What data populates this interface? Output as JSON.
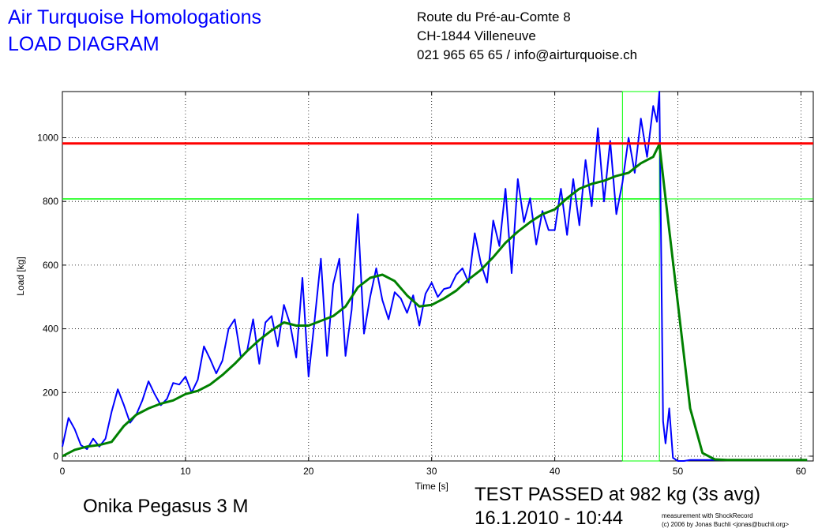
{
  "header": {
    "title_line1": "Air Turquoise Homologations",
    "title_line2": "LOAD DIAGRAM",
    "address_line1": "Route du Pré-au-Comte 8",
    "address_line2": "CH-1844 Villeneuve",
    "address_line3": "021 965 65 65 / info@airturquoise.ch"
  },
  "footer": {
    "model": "Onika Pegasus 3 M",
    "result": "TEST PASSED at 982 kg (3s avg)",
    "datetime": "16.1.2010 - 10:44",
    "credit_line1": "measurement with ShockRecord",
    "credit_line2": "(c) 2006 by Jonas Buchli <jonas@buchli.org>"
  },
  "chart_data": {
    "type": "line",
    "xlabel": "Time [s]",
    "ylabel": "Load [kg]",
    "xlim": [
      0,
      61
    ],
    "ylim": [
      -15,
      1145
    ],
    "xticks": [
      0,
      10,
      20,
      30,
      40,
      50,
      60
    ],
    "yticks": [
      0,
      200,
      400,
      600,
      800,
      1000
    ],
    "grid": true,
    "colors": {
      "raw": "#0000ff",
      "avg": "#008000",
      "limit": "#ff0000",
      "frame": "#00ff00"
    },
    "reference_lines": {
      "limit_load": 982,
      "lower_level": 808
    },
    "marker_box": {
      "x_start": 45.5,
      "x_end": 48.5,
      "y_top": 1145,
      "y_bottom": -15
    },
    "series": [
      {
        "key": "raw",
        "x": [
          0,
          0.5,
          1,
          1.5,
          2,
          2.5,
          3,
          3.5,
          4,
          4.5,
          5,
          5.5,
          6,
          6.5,
          7,
          7.5,
          8,
          8.5,
          9,
          9.5,
          10,
          10.5,
          11,
          11.5,
          12,
          12.5,
          13,
          13.5,
          14,
          14.5,
          15,
          15.5,
          16,
          16.5,
          17,
          17.5,
          18,
          18.5,
          19,
          19.5,
          20,
          20.5,
          21,
          21.5,
          22,
          22.5,
          23,
          23.5,
          24,
          24.5,
          25,
          25.5,
          26,
          26.5,
          27,
          27.5,
          28,
          28.5,
          29,
          29.5,
          30,
          30.5,
          31,
          31.5,
          32,
          32.5,
          33,
          33.5,
          34,
          34.5,
          35,
          35.5,
          36,
          36.5,
          37,
          37.5,
          38,
          38.5,
          39,
          39.5,
          40,
          40.5,
          41,
          41.5,
          42,
          42.5,
          43,
          43.5,
          44,
          44.5,
          45,
          45.5,
          46,
          46.5,
          47,
          47.5,
          48,
          48.3,
          48.5,
          48.8,
          49,
          49.3,
          49.6,
          50,
          50.5,
          51,
          52,
          53,
          54,
          56,
          58,
          60,
          60.5
        ],
        "y": [
          30,
          120,
          85,
          35,
          22,
          55,
          30,
          55,
          140,
          210,
          160,
          105,
          130,
          175,
          235,
          195,
          160,
          180,
          230,
          225,
          250,
          200,
          240,
          345,
          305,
          260,
          300,
          400,
          430,
          310,
          330,
          430,
          290,
          420,
          440,
          345,
          475,
          415,
          310,
          560,
          250,
          430,
          620,
          315,
          540,
          620,
          315,
          460,
          760,
          385,
          500,
          590,
          490,
          430,
          515,
          495,
          450,
          505,
          410,
          510,
          545,
          500,
          525,
          530,
          570,
          590,
          545,
          700,
          605,
          545,
          740,
          660,
          840,
          575,
          870,
          735,
          810,
          665,
          770,
          710,
          710,
          840,
          695,
          870,
          725,
          930,
          785,
          1030,
          800,
          990,
          760,
          860,
          1000,
          890,
          1060,
          940,
          1100,
          1050,
          1145,
          110,
          40,
          150,
          -5,
          -15,
          -15,
          -12,
          -12,
          -12,
          -12,
          -12,
          -12,
          -12,
          -12
        ]
      },
      {
        "key": "avg",
        "x": [
          0,
          1,
          2,
          3,
          4,
          5,
          6,
          7,
          8,
          9,
          10,
          11,
          12,
          13,
          14,
          15,
          16,
          17,
          18,
          19,
          20,
          21,
          22,
          23,
          24,
          25,
          26,
          27,
          28,
          29,
          30,
          31,
          32,
          33,
          34,
          35,
          36,
          37,
          38,
          39,
          40,
          41,
          42,
          43,
          44,
          45,
          46,
          47,
          48,
          48.5,
          49,
          50,
          51,
          52,
          53,
          54,
          56,
          58,
          60,
          60.5
        ],
        "y": [
          0,
          20,
          30,
          35,
          45,
          95,
          130,
          150,
          165,
          175,
          195,
          205,
          225,
          255,
          290,
          330,
          365,
          395,
          420,
          410,
          410,
          425,
          440,
          470,
          530,
          560,
          570,
          550,
          505,
          470,
          475,
          495,
          520,
          555,
          585,
          625,
          670,
          705,
          735,
          760,
          775,
          810,
          840,
          855,
          865,
          880,
          890,
          920,
          940,
          980,
          810,
          480,
          150,
          10,
          -10,
          -12,
          -12,
          -12,
          -12,
          -12
        ]
      }
    ]
  }
}
